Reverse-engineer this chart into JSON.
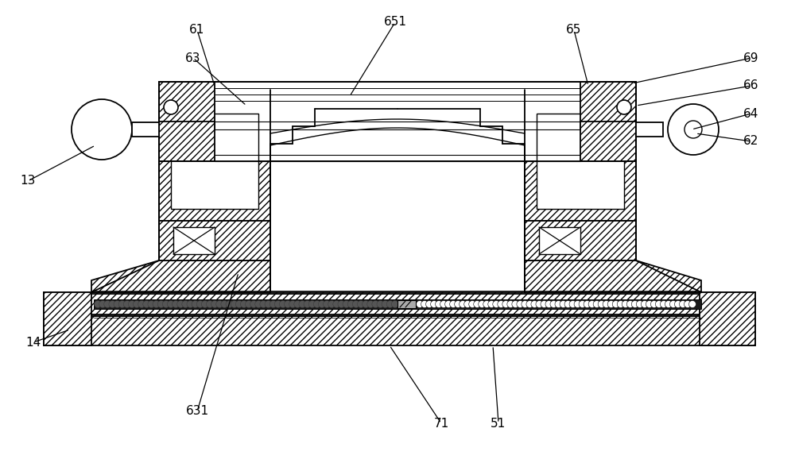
{
  "bg_color": "#ffffff",
  "line_color": "#000000",
  "figsize": [
    10.0,
    5.83
  ],
  "dpi": 100,
  "hatch": "////",
  "lw_main": 1.3,
  "lw_thin": 0.8,
  "lw_label": 0.9
}
